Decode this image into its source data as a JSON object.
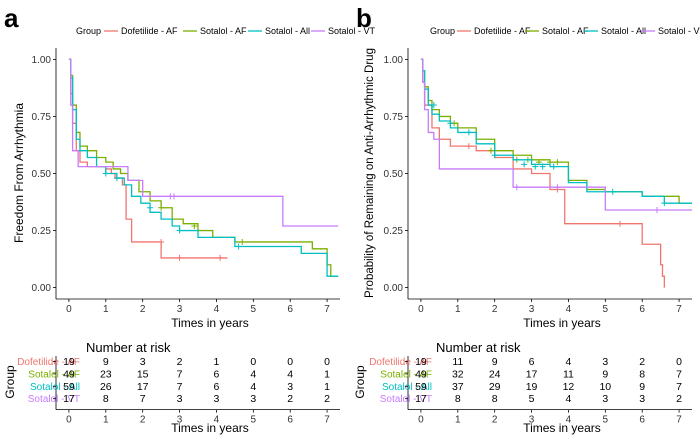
{
  "chart_data": [
    {
      "type": "line",
      "subtype": "step",
      "panel_label": "a",
      "legend_title": "Group",
      "xlabel": "Times in years",
      "ylabel": "Freedom From Arrhythmia",
      "xlim": [
        -0.35,
        7.35
      ],
      "ylim": [
        -0.05,
        1.05
      ],
      "xticks": [
        "0",
        "1",
        "2",
        "3",
        "4",
        "5",
        "6",
        "7"
      ],
      "yticks": [
        "0.00",
        "0.25",
        "0.50",
        "0.75",
        "1.00"
      ],
      "series": [
        {
          "name": "Dofetilide - AF",
          "color": "#f0766d",
          "x": [
            0,
            0.05,
            0.1,
            0.2,
            0.3,
            0.5,
            0.75,
            1.0,
            1.15,
            1.25,
            1.45,
            1.55,
            1.7,
            2.0,
            2.5,
            4.3
          ],
          "y": [
            1,
            0.85,
            0.72,
            0.6,
            0.55,
            0.53,
            0.53,
            0.52,
            0.5,
            0.48,
            0.45,
            0.3,
            0.2,
            0.2,
            0.13,
            0.13
          ],
          "censor": [
            [
              2.5,
              0.2
            ],
            [
              3.0,
              0.13
            ],
            [
              4.1,
              0.13
            ]
          ]
        },
        {
          "name": "Sotalol - AF",
          "color": "#7cae00",
          "x": [
            0,
            0.05,
            0.1,
            0.2,
            0.3,
            0.5,
            0.75,
            1.0,
            1.2,
            1.4,
            1.6,
            1.9,
            2.2,
            2.5,
            2.8,
            3.1,
            3.5,
            3.9,
            4.5,
            5.5,
            6.6,
            7.0,
            7.1,
            7.3
          ],
          "y": [
            1,
            0.93,
            0.8,
            0.68,
            0.62,
            0.6,
            0.57,
            0.55,
            0.52,
            0.5,
            0.47,
            0.42,
            0.38,
            0.35,
            0.3,
            0.28,
            0.25,
            0.22,
            0.2,
            0.2,
            0.17,
            0.1,
            0.05,
            0.05
          ],
          "censor": [
            [
              2.5,
              0.35
            ],
            [
              3.4,
              0.27
            ],
            [
              4.7,
              0.2
            ]
          ]
        },
        {
          "name": "Sotalol - All",
          "color": "#00bfc4",
          "x": [
            0,
            0.05,
            0.1,
            0.2,
            0.3,
            0.5,
            0.75,
            1.0,
            1.15,
            1.3,
            1.5,
            1.7,
            1.95,
            2.2,
            2.5,
            2.8,
            3.0,
            3.5,
            4.5,
            5.2,
            6.3,
            7.0,
            7.3
          ],
          "y": [
            1,
            0.92,
            0.78,
            0.65,
            0.6,
            0.57,
            0.53,
            0.5,
            0.5,
            0.48,
            0.45,
            0.4,
            0.37,
            0.33,
            0.3,
            0.27,
            0.25,
            0.22,
            0.18,
            0.18,
            0.15,
            0.05,
            0.05
          ],
          "censor": [
            [
              1.0,
              0.5
            ],
            [
              1.3,
              0.48
            ],
            [
              2.2,
              0.35
            ],
            [
              3.0,
              0.25
            ],
            [
              4.6,
              0.18
            ]
          ]
        },
        {
          "name": "Sotalol - VT",
          "color": "#c77cff",
          "x": [
            0,
            0.05,
            0.1,
            0.25,
            0.5,
            1.0,
            1.6,
            2.0,
            2.3,
            2.7,
            2.8,
            3.5,
            4.5,
            5.8,
            7.3
          ],
          "y": [
            1,
            0.8,
            0.6,
            0.53,
            0.53,
            0.53,
            0.47,
            0.4,
            0.4,
            0.4,
            0.4,
            0.4,
            0.4,
            0.27,
            0.27
          ],
          "censor": [
            [
              2.75,
              0.4
            ],
            [
              2.85,
              0.4
            ]
          ]
        }
      ],
      "risk_table": {
        "title": "Number at risk",
        "ylabel": "Group",
        "xlabel": "Times in years",
        "x": [
          "0",
          "1",
          "2",
          "3",
          "4",
          "5",
          "6",
          "7"
        ],
        "rows": [
          {
            "name": "Dofetilide - AF",
            "color": "#f0766d",
            "values": [
              "19",
              "9",
              "3",
              "2",
              "1",
              "0",
              "0",
              "0"
            ]
          },
          {
            "name": "Sotalol - AF",
            "color": "#7cae00",
            "values": [
              "49",
              "23",
              "15",
              "7",
              "6",
              "4",
              "4",
              "1"
            ]
          },
          {
            "name": "Sotalol - All",
            "color": "#00bfc4",
            "values": [
              "59",
              "26",
              "17",
              "7",
              "6",
              "4",
              "3",
              "1"
            ]
          },
          {
            "name": "Sotalol - VT",
            "color": "#c77cff",
            "values": [
              "17",
              "8",
              "7",
              "3",
              "3",
              "3",
              "2",
              "2"
            ]
          }
        ]
      }
    },
    {
      "type": "line",
      "subtype": "step",
      "panel_label": "b",
      "legend_title": "Group",
      "xlabel": "Times in years",
      "ylabel": "Probability of Remaining on Anti-Arrhythmic Drug",
      "xlim": [
        -0.35,
        7.35
      ],
      "ylim": [
        -0.05,
        1.05
      ],
      "xticks": [
        "0",
        "1",
        "2",
        "3",
        "4",
        "5",
        "6",
        "7"
      ],
      "yticks": [
        "0.00",
        "0.25",
        "0.50",
        "0.75",
        "1.00"
      ],
      "series": [
        {
          "name": "Dofetilide - AF",
          "color": "#f0766d",
          "x": [
            0,
            0.05,
            0.1,
            0.3,
            0.5,
            0.8,
            1.0,
            1.5,
            2.0,
            2.5,
            3.0,
            3.5,
            3.8,
            3.9,
            5.5,
            6.0,
            6.5,
            6.55,
            6.6
          ],
          "y": [
            1,
            0.9,
            0.8,
            0.7,
            0.65,
            0.62,
            0.62,
            0.6,
            0.57,
            0.52,
            0.5,
            0.43,
            0.43,
            0.28,
            0.28,
            0.19,
            0.1,
            0.05,
            0
          ],
          "censor": [
            [
              1.3,
              0.62
            ],
            [
              3.7,
              0.43
            ],
            [
              5.4,
              0.28
            ]
          ]
        },
        {
          "name": "Sotalol - AF",
          "color": "#7cae00",
          "x": [
            0,
            0.05,
            0.1,
            0.2,
            0.3,
            0.5,
            0.8,
            1.0,
            1.5,
            2.0,
            2.5,
            3.0,
            3.5,
            3.8,
            4.0,
            4.5,
            5.0,
            6.0,
            7.0,
            7.35
          ],
          "y": [
            1,
            0.95,
            0.88,
            0.82,
            0.78,
            0.75,
            0.72,
            0.7,
            0.65,
            0.6,
            0.58,
            0.56,
            0.55,
            0.55,
            0.47,
            0.43,
            0.42,
            0.4,
            0.37,
            0.37
          ],
          "censor": [
            [
              0.9,
              0.72
            ],
            [
              1.9,
              0.6
            ],
            [
              2.6,
              0.56
            ],
            [
              2.9,
              0.56
            ],
            [
              3.2,
              0.55
            ],
            [
              3.5,
              0.55
            ],
            [
              3.7,
              0.55
            ]
          ]
        },
        {
          "name": "Sotalol - All",
          "color": "#00bfc4",
          "x": [
            0,
            0.05,
            0.1,
            0.2,
            0.3,
            0.5,
            0.8,
            1.0,
            1.5,
            2.0,
            2.5,
            3.0,
            3.5,
            3.8,
            4.0,
            4.5,
            5.0,
            6.0,
            6.6,
            7.0,
            7.35
          ],
          "y": [
            1,
            0.95,
            0.87,
            0.8,
            0.76,
            0.73,
            0.7,
            0.68,
            0.63,
            0.58,
            0.56,
            0.54,
            0.53,
            0.53,
            0.46,
            0.42,
            0.42,
            0.4,
            0.37,
            0.37,
            0.37
          ],
          "censor": [
            [
              0.35,
              0.8
            ],
            [
              0.8,
              0.72
            ],
            [
              1.3,
              0.68
            ],
            [
              2.0,
              0.58
            ],
            [
              2.8,
              0.54
            ],
            [
              3.1,
              0.53
            ],
            [
              3.3,
              0.53
            ],
            [
              3.6,
              0.53
            ],
            [
              5.2,
              0.42
            ],
            [
              6.6,
              0.37
            ]
          ]
        },
        {
          "name": "Sotalol - VT",
          "color": "#c77cff",
          "x": [
            0,
            0.05,
            0.1,
            0.2,
            0.35,
            0.5,
            1.0,
            2.0,
            2.5,
            3.0,
            3.5,
            4.5,
            5.0,
            6.0,
            7.0,
            7.35
          ],
          "y": [
            1,
            0.9,
            0.78,
            0.68,
            0.65,
            0.52,
            0.52,
            0.52,
            0.44,
            0.44,
            0.44,
            0.44,
            0.34,
            0.34,
            0.34,
            0.34
          ],
          "censor": [
            [
              2.6,
              0.44
            ],
            [
              3.7,
              0.44
            ],
            [
              6.4,
              0.34
            ]
          ]
        }
      ],
      "risk_table": {
        "title": "Number at risk",
        "ylabel": "Group",
        "xlabel": "Times in years",
        "x": [
          "0",
          "1",
          "2",
          "3",
          "4",
          "5",
          "6",
          "7"
        ],
        "rows": [
          {
            "name": "Dofetilide - AF",
            "color": "#f0766d",
            "values": [
              "19",
              "11",
              "9",
              "6",
              "4",
              "3",
              "2",
              "0"
            ]
          },
          {
            "name": "Sotalol - AF",
            "color": "#7cae00",
            "values": [
              "49",
              "32",
              "24",
              "17",
              "11",
              "9",
              "8",
              "7"
            ]
          },
          {
            "name": "Sotalol - All",
            "color": "#00bfc4",
            "values": [
              "59",
              "37",
              "29",
              "19",
              "12",
              "10",
              "9",
              "7"
            ]
          },
          {
            "name": "Sotalol - VT",
            "color": "#c77cff",
            "values": [
              "17",
              "8",
              "8",
              "5",
              "4",
              "3",
              "3",
              "2"
            ]
          }
        ]
      }
    }
  ]
}
